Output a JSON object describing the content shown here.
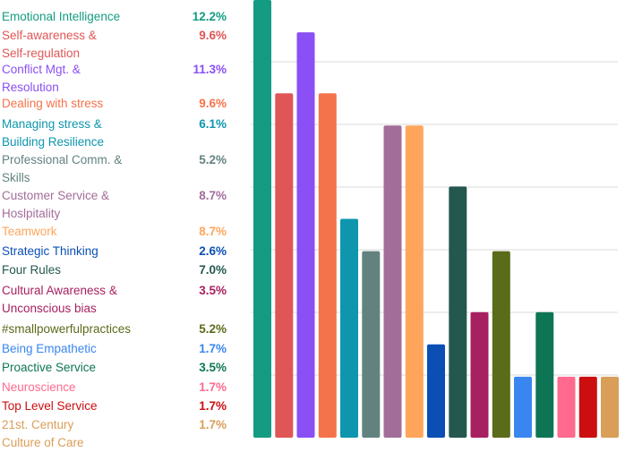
{
  "chart_data": {
    "type": "bar",
    "title": "",
    "xlabel": "",
    "ylabel": "",
    "unit": "%",
    "grid": true,
    "legend_placement": "left",
    "categories": [
      "Emotional Intelligence",
      "Self-awareness & Self-regulation",
      "Conflict Mgt. & Resolution",
      "Dealing with stress",
      "Managing stress & Building Resilience",
      "Professional Comm. & Skills",
      "Customer Service & Hoslpitality",
      "Teamwork",
      "Strategic Thinking",
      "Four Rules",
      "Cultural Awareness & Unconscious bias",
      "#smallpowerfulpractices",
      "Being Empathetic",
      "Proactive Service",
      "Neuroscience",
      "Top Level Service",
      "21st. Century Culture of Care"
    ],
    "label_lines": [
      [
        "Emotional Intelligence"
      ],
      [
        "Self-awareness &",
        "Self-regulation"
      ],
      [
        "Conflict Mgt. &",
        "Resolution"
      ],
      [
        "Dealing with stress"
      ],
      [
        "Managing stress &",
        "Building Resilience"
      ],
      [
        "Professional Comm. &",
        "Skills"
      ],
      [
        "Customer Service &",
        "Hoslpitality"
      ],
      [
        "Teamwork"
      ],
      [
        "Strategic Thinking"
      ],
      [
        "Four Rules"
      ],
      [
        "Cultural Awareness &",
        "Unconscious bias"
      ],
      [
        "#smallpowerfulpractices"
      ],
      [
        "Being Empathetic"
      ],
      [
        "Proactive Service"
      ],
      [
        "Neuroscience"
      ],
      [
        "Top Level Service"
      ],
      [
        "21st. Century",
        "Culture of Care"
      ]
    ],
    "value_labels": [
      "12.2%",
      "9.6%",
      "11.3%",
      "9.6%",
      "6.1%",
      "5.2%",
      "8.7%",
      "8.7%",
      "2.6%",
      "7.0%",
      "3.5%",
      "5.2%",
      "1.7%",
      "3.5%",
      "1.7%",
      "1.7%",
      "1.7%"
    ],
    "values": [
      12.2,
      9.6,
      11.3,
      9.6,
      6.1,
      5.2,
      8.7,
      8.7,
      2.6,
      7.0,
      3.5,
      5.2,
      1.7,
      3.5,
      1.7,
      1.7,
      1.7
    ],
    "colors": [
      "#149c82",
      "#e05656",
      "#8a4ff5",
      "#f5734a",
      "#0e96ae",
      "#628280",
      "#a36d9a",
      "#ffa55b",
      "#0b4fb4",
      "#24584f",
      "#a72060",
      "#5a6b1a",
      "#3a86f0",
      "#0e7554",
      "#ff6a8e",
      "#cc0e10",
      "#d99e58"
    ],
    "ylim": [
      0,
      12.2
    ]
  }
}
